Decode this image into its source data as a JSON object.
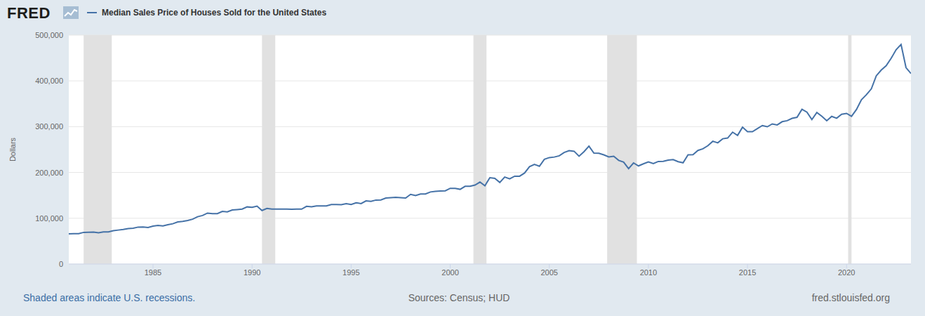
{
  "brand": "FRED",
  "chart_data": {
    "type": "line",
    "title": "Median Sales Price of Houses Sold for the United States",
    "y_label": "Dollars",
    "note": "Shaded areas indicate U.S. recessions.",
    "source": "Sources: Census; HUD",
    "url": "fred.stlouisfed.org",
    "grid": true,
    "x": [
      1980.75,
      1981,
      1981.25,
      1981.5,
      1981.75,
      1982,
      1982.25,
      1982.5,
      1982.75,
      1983,
      1983.25,
      1983.5,
      1983.75,
      1984,
      1984.25,
      1984.5,
      1984.75,
      1985,
      1985.25,
      1985.5,
      1985.75,
      1986,
      1986.25,
      1986.5,
      1986.75,
      1987,
      1987.25,
      1987.5,
      1987.75,
      1988,
      1988.25,
      1988.5,
      1988.75,
      1989,
      1989.25,
      1989.5,
      1989.75,
      1990,
      1990.25,
      1990.5,
      1990.75,
      1991,
      1991.25,
      1991.5,
      1991.75,
      1992,
      1992.25,
      1992.5,
      1992.75,
      1993,
      1993.25,
      1993.5,
      1993.75,
      1994,
      1994.25,
      1994.5,
      1994.75,
      1995,
      1995.25,
      1995.5,
      1995.75,
      1996,
      1996.25,
      1996.5,
      1996.75,
      1997,
      1997.25,
      1997.5,
      1997.75,
      1998,
      1998.25,
      1998.5,
      1998.75,
      1999,
      1999.25,
      1999.5,
      1999.75,
      2000,
      2000.25,
      2000.5,
      2000.75,
      2001,
      2001.25,
      2001.5,
      2001.75,
      2002,
      2002.25,
      2002.5,
      2002.75,
      2003,
      2003.25,
      2003.5,
      2003.75,
      2004,
      2004.25,
      2004.5,
      2004.75,
      2005,
      2005.25,
      2005.5,
      2005.75,
      2006,
      2006.25,
      2006.5,
      2006.75,
      2007,
      2007.25,
      2007.5,
      2007.75,
      2008,
      2008.25,
      2008.5,
      2008.75,
      2009,
      2009.25,
      2009.5,
      2009.75,
      2010,
      2010.25,
      2010.5,
      2010.75,
      2011,
      2011.25,
      2011.5,
      2011.75,
      2012,
      2012.25,
      2012.5,
      2012.75,
      2013,
      2013.25,
      2013.5,
      2013.75,
      2014,
      2014.25,
      2014.5,
      2014.75,
      2015,
      2015.25,
      2015.5,
      2015.75,
      2016,
      2016.25,
      2016.5,
      2016.75,
      2017,
      2017.25,
      2017.5,
      2017.75,
      2018,
      2018.25,
      2018.5,
      2018.75,
      2019,
      2019.25,
      2019.5,
      2019.75,
      2020,
      2020.25,
      2020.5,
      2020.75,
      2021,
      2021.25,
      2021.5,
      2021.75,
      2022,
      2022.25,
      2022.5,
      2022.75,
      2023,
      2023.25
    ],
    "series": [
      {
        "name": "Median Sales Price of Houses Sold for the United States",
        "color": "#4572a7",
        "values": [
          66000,
          66400,
          66400,
          69200,
          69500,
          69800,
          68100,
          70200,
          70300,
          72800,
          74200,
          75600,
          77500,
          78200,
          80700,
          81000,
          79900,
          82800,
          84300,
          83200,
          85800,
          88000,
          92100,
          93100,
          95000,
          97900,
          103400,
          106000,
          111300,
          110000,
          110000,
          115000,
          113900,
          118000,
          118900,
          120000,
          124800,
          123900,
          126400,
          117000,
          121500,
          120000,
          119900,
          120000,
          120000,
          119500,
          120000,
          120000,
          126000,
          125000,
          127000,
          127000,
          127000,
          130000,
          130000,
          129700,
          132000,
          130000,
          133900,
          132000,
          138000,
          137000,
          139750,
          140000,
          144100,
          145000,
          145800,
          145000,
          144200,
          152200,
          149500,
          153000,
          153000,
          157400,
          158700,
          159400,
          160000,
          165300,
          165300,
          163200,
          169800,
          169800,
          172500,
          179000,
          171100,
          188700,
          187200,
          178100,
          190100,
          186000,
          191800,
          191900,
          198800,
          212700,
          217600,
          213500,
          228800,
          232500,
          233700,
          236400,
          243600,
          247700,
          246300,
          235600,
          245400,
          257400,
          242200,
          241800,
          238400,
          233900,
          235300,
          226500,
          222500,
          208400,
          220900,
          214300,
          219000,
          222900,
          219500,
          224100,
          224300,
          226900,
          228100,
          223500,
          221100,
          238400,
          238700,
          248200,
          251700,
          258400,
          268100,
          264800,
          273600,
          275200,
          288000,
          281000,
          298900,
          289200,
          289100,
          295800,
          302500,
          299800,
          306000,
          303800,
          310900,
          313100,
          318200,
          320500,
          337900,
          331800,
          315600,
          330900,
          322800,
          313000,
          322500,
          318400,
          327100,
          329000,
          322600,
          337500,
          358700,
          369800,
          382600,
          411200,
          423600,
          433100,
          449300,
          468000,
          479500,
          429000,
          416100
        ]
      }
    ],
    "xlim": [
      1980.75,
      2023.25
    ],
    "xticks": [
      1985,
      1990,
      1995,
      2000,
      2005,
      2010,
      2015,
      2020
    ],
    "ylim": [
      0,
      500000
    ],
    "yticks": [
      0,
      {
        "value": 100000,
        "label": "100,000"
      },
      {
        "value": 200000,
        "label": "200,000"
      },
      {
        "value": 300000,
        "label": "300,000"
      },
      {
        "value": 400000,
        "label": "400,000"
      },
      {
        "value": 500000,
        "label": "500,000"
      }
    ],
    "recessions": [
      [
        1981.5,
        1982.92
      ],
      [
        1990.5,
        1991.17
      ],
      [
        2001.17,
        2001.83
      ],
      [
        2007.92,
        2009.42
      ],
      [
        2020.08,
        2020.25
      ]
    ]
  }
}
